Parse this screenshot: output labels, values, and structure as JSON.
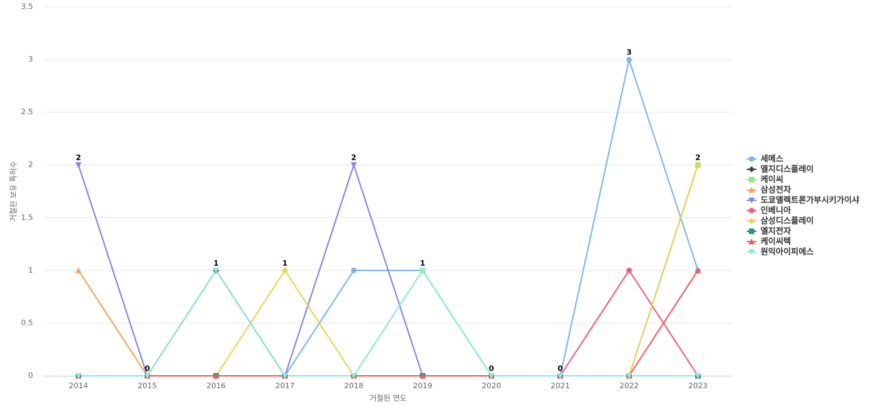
{
  "chart_data": {
    "type": "line",
    "x_label": "거절된 연도",
    "y_label": "거절된 보유 특허수",
    "categories": [
      "2014",
      "2015",
      "2016",
      "2017",
      "2018",
      "2019",
      "2020",
      "2021",
      "2022",
      "2023"
    ],
    "ylim": [
      0,
      3.5
    ],
    "yticks": [
      0,
      0.5,
      1,
      1.5,
      2,
      2.5,
      3,
      3.5
    ],
    "grid": true,
    "series": [
      {
        "name": "세메스",
        "color": "#7cb5ec",
        "marker": "circle",
        "values": [
          0,
          0,
          0,
          0,
          1,
          1,
          0,
          0,
          3,
          1
        ]
      },
      {
        "name": "엘지디스플레이",
        "color": "#434348",
        "marker": "diamond",
        "values": [
          0,
          0,
          1,
          0,
          0,
          0,
          0,
          0,
          0,
          0
        ]
      },
      {
        "name": "케이씨",
        "color": "#90ed7d",
        "marker": "square",
        "values": [
          0,
          0,
          0,
          0,
          0,
          1,
          0,
          0,
          0,
          2
        ]
      },
      {
        "name": "삼성전자",
        "color": "#f7a35c",
        "marker": "triangle",
        "values": [
          1,
          0,
          0,
          0,
          0,
          0,
          0,
          0,
          0,
          0
        ]
      },
      {
        "name": "도쿄엘렉트론가부시키가이샤",
        "color": "#8085e9",
        "marker": "triangle-down",
        "values": [
          2,
          0,
          0,
          0,
          2,
          0,
          0,
          0,
          0,
          0
        ]
      },
      {
        "name": "인베니아",
        "color": "#f15c80",
        "marker": "circle",
        "values": [
          0,
          0,
          0,
          0,
          0,
          0,
          0,
          0,
          1,
          0
        ]
      },
      {
        "name": "삼성디스플레이",
        "color": "#e4d354",
        "marker": "diamond",
        "values": [
          0,
          0,
          0,
          1,
          0,
          0,
          0,
          0,
          0,
          2
        ]
      },
      {
        "name": "엘지전자",
        "color": "#2b908f",
        "marker": "square",
        "values": [
          0,
          0,
          0,
          0,
          0,
          0,
          0,
          0,
          0,
          0
        ]
      },
      {
        "name": "케이씨텍",
        "color": "#f45b5b",
        "marker": "triangle",
        "values": [
          0,
          0,
          0,
          0,
          0,
          0,
          0,
          0,
          0,
          1
        ]
      },
      {
        "name": "원익아이피에스",
        "color": "#91e8e1",
        "marker": "triangle-down",
        "values": [
          0,
          0,
          1,
          0,
          0,
          1,
          0,
          0,
          0,
          0
        ]
      }
    ]
  }
}
